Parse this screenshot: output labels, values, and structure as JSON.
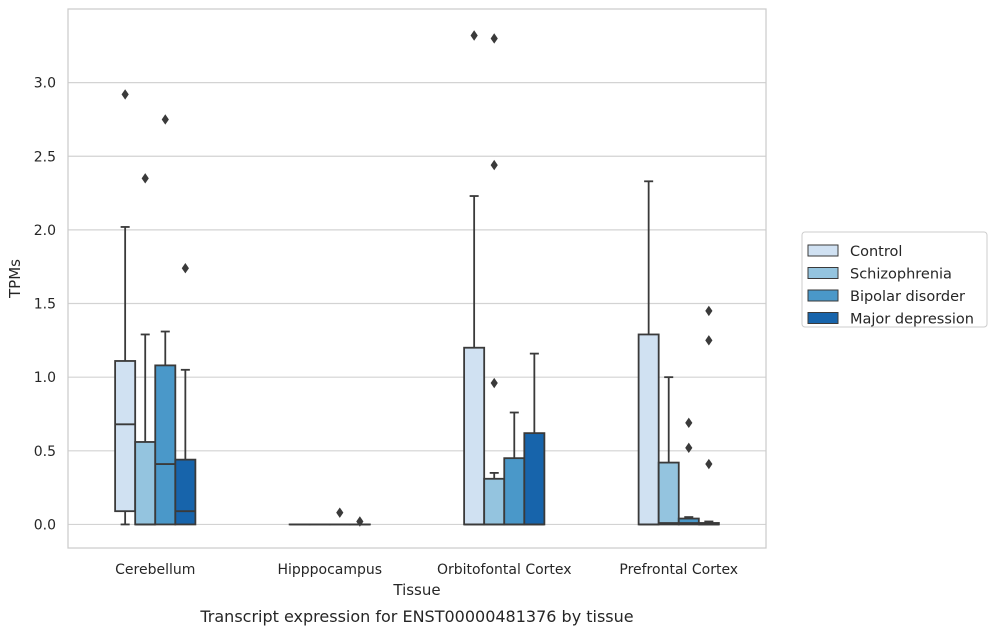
{
  "caption": "Transcript expression for ENST00000481376 by tissue",
  "chart_data": {
    "type": "box",
    "xlabel": "Tissue",
    "ylabel": "TPMs",
    "ylim": [
      -0.16,
      3.5
    ],
    "yticks": [
      "0.0",
      "0.5",
      "1.0",
      "1.5",
      "2.0",
      "2.5",
      "3.0"
    ],
    "grid": "horizontal",
    "legend_placement": "right",
    "categories": [
      "Cerebellum",
      "Hipppocampus",
      "Orbitofontal Cortex",
      "Prefrontal Cortex"
    ],
    "series": [
      {
        "name": "Control",
        "color": "#d0e1f2",
        "boxes": [
          {
            "whislo": 0.0,
            "q1": 0.09,
            "med": 0.68,
            "q3": 1.11,
            "whishi": 2.02,
            "fliers": [
              2.92
            ]
          },
          {
            "whislo": 0.0,
            "q1": 0.0,
            "med": 0.0,
            "q3": 0.0,
            "whishi": 0.0,
            "fliers": []
          },
          {
            "whislo": 0.0,
            "q1": 0.0,
            "med": 0.0,
            "q3": 1.2,
            "whishi": 2.23,
            "fliers": [
              3.32
            ]
          },
          {
            "whislo": 0.0,
            "q1": 0.0,
            "med": 0.0,
            "q3": 1.29,
            "whishi": 2.33,
            "fliers": []
          }
        ]
      },
      {
        "name": "Schizophrenia",
        "color": "#94c4df",
        "boxes": [
          {
            "whislo": 0.0,
            "q1": 0.0,
            "med": 0.0,
            "q3": 0.56,
            "whishi": 1.29,
            "fliers": [
              2.35
            ]
          },
          {
            "whislo": 0.0,
            "q1": 0.0,
            "med": 0.0,
            "q3": 0.0,
            "whishi": 0.0,
            "fliers": []
          },
          {
            "whislo": 0.0,
            "q1": 0.0,
            "med": 0.0,
            "q3": 0.31,
            "whishi": 0.35,
            "fliers": [
              0.96,
              2.44,
              3.3
            ]
          },
          {
            "whislo": 0.0,
            "q1": 0.0,
            "med": 0.01,
            "q3": 0.42,
            "whishi": 1.0,
            "fliers": []
          }
        ]
      },
      {
        "name": "Bipolar disorder",
        "color": "#4a98c9",
        "boxes": [
          {
            "whislo": 0.0,
            "q1": 0.0,
            "med": 0.41,
            "q3": 1.08,
            "whishi": 1.31,
            "fliers": [
              2.75
            ]
          },
          {
            "whislo": 0.0,
            "q1": 0.0,
            "med": 0.0,
            "q3": 0.0,
            "whishi": 0.0,
            "fliers": [
              0.08
            ]
          },
          {
            "whislo": 0.0,
            "q1": 0.0,
            "med": 0.0,
            "q3": 0.45,
            "whishi": 0.76,
            "fliers": []
          },
          {
            "whislo": 0.0,
            "q1": 0.0,
            "med": 0.01,
            "q3": 0.04,
            "whishi": 0.05,
            "fliers": [
              0.52,
              0.69
            ]
          }
        ]
      },
      {
        "name": "Major depression",
        "color": "#1764ab",
        "boxes": [
          {
            "whislo": 0.0,
            "q1": 0.0,
            "med": 0.09,
            "q3": 0.44,
            "whishi": 1.05,
            "fliers": [
              1.74
            ]
          },
          {
            "whislo": 0.0,
            "q1": 0.0,
            "med": 0.0,
            "q3": 0.0,
            "whishi": 0.0,
            "fliers": [
              0.02
            ]
          },
          {
            "whislo": 0.0,
            "q1": 0.0,
            "med": 0.0,
            "q3": 0.62,
            "whishi": 1.16,
            "fliers": []
          },
          {
            "whislo": 0.0,
            "q1": 0.0,
            "med": 0.0,
            "q3": 0.01,
            "whishi": 0.02,
            "fliers": [
              0.41,
              1.25,
              1.45
            ]
          }
        ]
      }
    ]
  }
}
